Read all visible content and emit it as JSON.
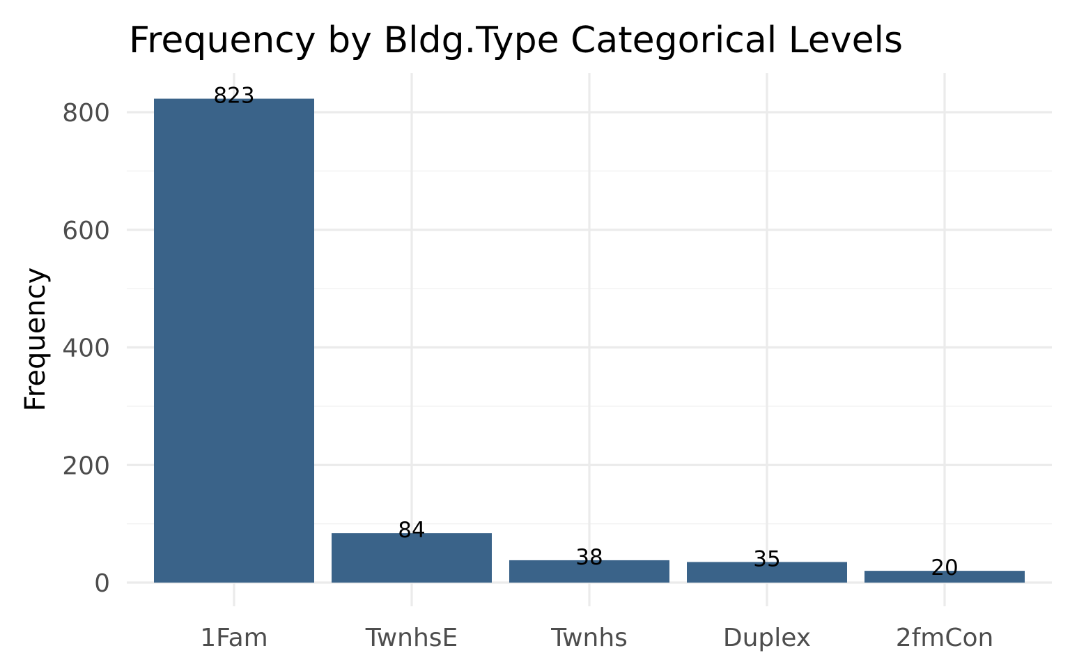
{
  "chart_data": {
    "type": "bar",
    "title": "Frequency by Bldg.Type Categorical Levels",
    "xlabel": "",
    "ylabel": "Frequency",
    "categories": [
      "1Fam",
      "TwnhsE",
      "Twnhs",
      "Duplex",
      "2fmCon"
    ],
    "values": [
      823,
      84,
      38,
      35,
      20
    ],
    "data_labels": [
      "823",
      "84",
      "38",
      "35",
      "20"
    ],
    "yticks": [
      0,
      200,
      400,
      600,
      800
    ],
    "ytick_labels": [
      "0",
      "200",
      "400",
      "600",
      "800"
    ],
    "ylim": [
      0,
      864
    ],
    "grid": true,
    "legend": "none",
    "bar_color": "#3a6389"
  }
}
